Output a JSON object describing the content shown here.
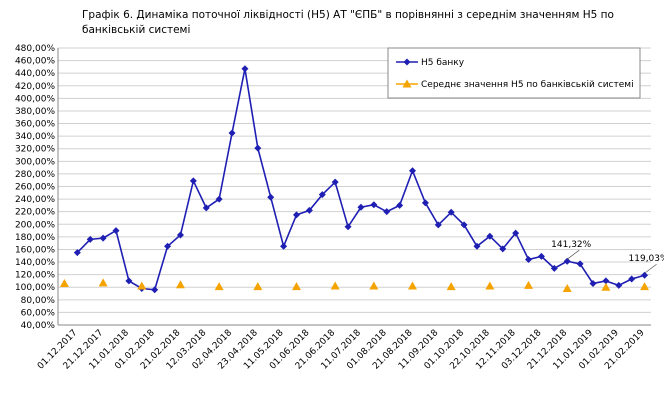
{
  "chart_data": {
    "type": "line",
    "title": "Графік 6.  Динаміка поточної ліквідності (Н5) АТ \"ЄПБ\" в порівнянні з середнім значенням Н5 по банківській системі",
    "categories": [
      null,
      "01.12.2017",
      null,
      "21.12.2017",
      null,
      "11.01.2018",
      null,
      "01.02.2018",
      null,
      "21.02.2018",
      null,
      "12.03.2018",
      null,
      "02.04.2018",
      null,
      "23.04.2018",
      null,
      "11.05.2018",
      null,
      "01.06.2018",
      null,
      "21.06.2018",
      null,
      "11.07.2018",
      null,
      "01.08.2018",
      null,
      "21.08.2018",
      null,
      "11.09.2018",
      null,
      "01.10.2018",
      null,
      "22.10.2018",
      null,
      "12.11.2018",
      null,
      "03.12.2018",
      null,
      "21.12.2018",
      null,
      "11.01.2019",
      null,
      "01.02.2019",
      null,
      "21.02.2019"
    ],
    "series": [
      {
        "name": "Н5 банку",
        "color": "#1f1fb4",
        "marker": "diamond",
        "line": true,
        "values": [
          null,
          155,
          176,
          178,
          190,
          110,
          98,
          96,
          165,
          183,
          269,
          226,
          240,
          345,
          447,
          321,
          243,
          165,
          215,
          222,
          247,
          267,
          196,
          227,
          231,
          220,
          230,
          285,
          234,
          199,
          219,
          199,
          165,
          181,
          161,
          186,
          144,
          149,
          130,
          141.32,
          137,
          106,
          110,
          103,
          113,
          119.03
        ],
        "value_labels": [
          null,
          null,
          null,
          null,
          null,
          null,
          null,
          null,
          null,
          null,
          null,
          null,
          null,
          null,
          null,
          null,
          null,
          null,
          null,
          null,
          null,
          null,
          null,
          null,
          null,
          null,
          null,
          null,
          null,
          null,
          null,
          null,
          null,
          null,
          null,
          null,
          null,
          null,
          null,
          "141,32%",
          null,
          null,
          null,
          null,
          null,
          "119,03%"
        ]
      },
      {
        "name": "Середнє значення Н5 по банківській системі",
        "color": "#f5a300",
        "marker": "triangle",
        "line": false,
        "values": [
          106,
          null,
          null,
          107,
          null,
          null,
          102,
          null,
          null,
          104,
          null,
          null,
          101,
          null,
          null,
          101,
          null,
          null,
          101,
          null,
          null,
          102,
          null,
          null,
          102,
          null,
          null,
          102,
          null,
          null,
          101,
          null,
          null,
          102,
          null,
          null,
          103,
          null,
          null,
          98,
          null,
          null,
          100,
          null,
          null,
          101
        ]
      }
    ],
    "ylim": [
      40,
      480
    ],
    "yticks": [
      {
        "value": 40,
        "label": "40,00%"
      },
      {
        "value": 60,
        "label": "60,00%"
      },
      {
        "value": 80,
        "label": "80,00%"
      },
      {
        "value": 100,
        "label": "100,00%"
      },
      {
        "value": 120,
        "label": "120,00%"
      },
      {
        "value": 140,
        "label": "140,00%"
      },
      {
        "value": 160,
        "label": "160,00%"
      },
      {
        "value": 180,
        "label": "180,00%"
      },
      {
        "value": 200,
        "label": "200,00%"
      },
      {
        "value": 220,
        "label": "220,00%"
      },
      {
        "value": 240,
        "label": "240,00%"
      },
      {
        "value": 260,
        "label": "260,00%"
      },
      {
        "value": 280,
        "label": "280,00%"
      },
      {
        "value": 300,
        "label": "300,00%"
      },
      {
        "value": 320,
        "label": "320,00%"
      },
      {
        "value": 340,
        "label": "340,00%"
      },
      {
        "value": 360,
        "label": "360,00%"
      },
      {
        "value": 380,
        "label": "380,00%"
      },
      {
        "value": 400,
        "label": "400,00%"
      },
      {
        "value": 420,
        "label": "420,00%"
      },
      {
        "value": 440,
        "label": "440,00%"
      },
      {
        "value": 460,
        "label": "460,00%"
      },
      {
        "value": 480,
        "label": "480,00%"
      }
    ],
    "grid": true,
    "legend": "top-right"
  }
}
